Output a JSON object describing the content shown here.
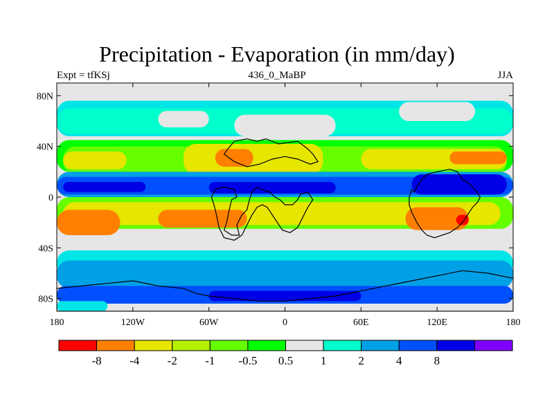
{
  "map": {
    "title": "Precipitation - Evaporation (in mm/day)",
    "left_label": "Expt = tfKSj",
    "center_label": "436_0_MaBP",
    "right_label": "JJA",
    "projection": "equirectangular",
    "lon_range": [
      -180,
      180
    ],
    "lat_range": [
      -90,
      90
    ],
    "lat_ticks": [
      {
        "value": 80,
        "label": "80N"
      },
      {
        "value": 40,
        "label": "40N"
      },
      {
        "value": 0,
        "label": "0"
      },
      {
        "value": -40,
        "label": "40S"
      },
      {
        "value": -80,
        "label": "80S"
      }
    ],
    "lon_ticks": [
      {
        "value": -180,
        "label": "180"
      },
      {
        "value": -120,
        "label": "120W"
      },
      {
        "value": -60,
        "label": "60W"
      },
      {
        "value": 0,
        "label": "0"
      },
      {
        "value": 60,
        "label": "60E"
      },
      {
        "value": 120,
        "label": "120E"
      },
      {
        "value": 180,
        "label": "180"
      }
    ],
    "background_color": "#e6e6e6",
    "regions": [
      {
        "category": "1 to 2",
        "color": "#00e6e6",
        "lon_range": [
          -180,
          180
        ],
        "lat_range": [
          48,
          76
        ]
      },
      {
        "category": "0.5 to 1",
        "color": "#00ffcc",
        "lon_range": [
          -180,
          180
        ],
        "lat_range": [
          50,
          70
        ]
      },
      {
        "category": "-0.5 to 0.5",
        "color": "#e6e6e6",
        "lon_range": [
          -100,
          -60
        ],
        "lat_range": [
          55,
          68
        ]
      },
      {
        "category": "-0.5 to 0.5",
        "color": "#e6e6e6",
        "lon_range": [
          -40,
          40
        ],
        "lat_range": [
          48,
          65
        ]
      },
      {
        "category": "-0.5 to 0.5",
        "color": "#e6e6e6",
        "lon_range": [
          90,
          150
        ],
        "lat_range": [
          60,
          75
        ]
      },
      {
        "category": "-1 to -0.5",
        "color": "#00ff00",
        "lon_range": [
          -180,
          180
        ],
        "lat_range": [
          20,
          45
        ]
      },
      {
        "category": "-2 to -1",
        "color": "#66ff00",
        "lon_range": [
          -175,
          175
        ],
        "lat_range": [
          18,
          40
        ]
      },
      {
        "category": "-4 to -2",
        "color": "#e6e600",
        "lon_range": [
          -175,
          -125
        ],
        "lat_range": [
          22,
          36
        ]
      },
      {
        "category": "-4 to -2",
        "color": "#e6e600",
        "lon_range": [
          -80,
          30
        ],
        "lat_range": [
          18,
          42
        ]
      },
      {
        "category": "-4 to -2",
        "color": "#e6e600",
        "lon_range": [
          60,
          175
        ],
        "lat_range": [
          22,
          38
        ]
      },
      {
        "category": "-8 to -4",
        "color": "#ff8000",
        "lon_range": [
          -55,
          -25
        ],
        "lat_range": [
          24,
          38
        ]
      },
      {
        "category": "-8 to -4",
        "color": "#ff8000",
        "lon_range": [
          130,
          175
        ],
        "lat_range": [
          26,
          36
        ]
      },
      {
        "category": "2 to 4",
        "color": "#00a0e6",
        "lon_range": [
          -180,
          180
        ],
        "lat_range": [
          0,
          20
        ]
      },
      {
        "category": "4 to 8",
        "color": "#0050ff",
        "lon_range": [
          -180,
          180
        ],
        "lat_range": [
          2,
          16
        ]
      },
      {
        "category": "> 8",
        "color": "#0000e6",
        "lon_range": [
          -175,
          -110
        ],
        "lat_range": [
          4,
          12
        ]
      },
      {
        "category": "> 8",
        "color": "#0000e6",
        "lon_range": [
          -60,
          40
        ],
        "lat_range": [
          3,
          12
        ]
      },
      {
        "category": "> 8",
        "color": "#0000e6",
        "lon_range": [
          100,
          175
        ],
        "lat_range": [
          2,
          18
        ]
      },
      {
        "category": "-2 to -1",
        "color": "#66ff00",
        "lon_range": [
          -180,
          180
        ],
        "lat_range": [
          -25,
          0
        ]
      },
      {
        "category": "-4 to -2",
        "color": "#e6e600",
        "lon_range": [
          -175,
          170
        ],
        "lat_range": [
          -22,
          -4
        ]
      },
      {
        "category": "-8 to -4",
        "color": "#ff8000",
        "lon_range": [
          -180,
          -130
        ],
        "lat_range": [
          -30,
          -10
        ]
      },
      {
        "category": "-8 to -4",
        "color": "#ff8000",
        "lon_range": [
          -100,
          -30
        ],
        "lat_range": [
          -24,
          -10
        ]
      },
      {
        "category": "-8 to -4",
        "color": "#ff8000",
        "lon_range": [
          95,
          145
        ],
        "lat_range": [
          -26,
          -8
        ]
      },
      {
        "category": "< -8",
        "color": "#ff0000",
        "lon_range": [
          135,
          145
        ],
        "lat_range": [
          -22,
          -14
        ]
      },
      {
        "category": "-0.5 to 0.5",
        "color": "#e6e6e6",
        "lon_range": [
          -160,
          -50
        ],
        "lat_range": [
          -40,
          -30
        ]
      },
      {
        "category": "-0.5 to 0.5",
        "color": "#e6e6e6",
        "lon_range": [
          0,
          110
        ],
        "lat_range": [
          -42,
          -30
        ]
      },
      {
        "category": "1 to 2",
        "color": "#00e6e6",
        "lon_range": [
          -180,
          180
        ],
        "lat_range": [
          -62,
          -42
        ]
      },
      {
        "category": "2 to 4",
        "color": "#00a0e6",
        "lon_range": [
          -180,
          180
        ],
        "lat_range": [
          -72,
          -50
        ]
      },
      {
        "category": "4 to 8",
        "color": "#0050ff",
        "lon_range": [
          -180,
          180
        ],
        "lat_range": [
          -84,
          -70
        ]
      },
      {
        "category": "> 8",
        "color": "#0000e6",
        "lon_range": [
          -60,
          60
        ],
        "lat_range": [
          -82,
          -74
        ]
      },
      {
        "category": "-0.5 to 0.5",
        "color": "#e6e6e6",
        "lon_range": [
          -140,
          180
        ],
        "lat_range": [
          -90,
          -84
        ]
      },
      {
        "category": "1 to 2",
        "color": "#00e6e6",
        "lon_range": [
          -180,
          -140
        ],
        "lat_range": [
          -90,
          -82
        ]
      }
    ],
    "land_outlines": [
      {
        "name": "north-landmass",
        "points": [
          [
            -48,
            34
          ],
          [
            -45,
            38
          ],
          [
            -40,
            44
          ],
          [
            -30,
            46
          ],
          [
            -22,
            44
          ],
          [
            -15,
            46
          ],
          [
            -5,
            42
          ],
          [
            10,
            44
          ],
          [
            18,
            38
          ],
          [
            22,
            34
          ],
          [
            26,
            28
          ],
          [
            20,
            26
          ],
          [
            10,
            30
          ],
          [
            0,
            32
          ],
          [
            -10,
            30
          ],
          [
            -20,
            26
          ],
          [
            -30,
            24
          ],
          [
            -40,
            28
          ],
          [
            -48,
            34
          ]
        ]
      },
      {
        "name": "equatorial-west",
        "points": [
          [
            -58,
            0
          ],
          [
            -55,
            6
          ],
          [
            -48,
            8
          ],
          [
            -40,
            6
          ],
          [
            -38,
            0
          ],
          [
            -42,
            -2
          ],
          [
            -44,
            -10
          ],
          [
            -46,
            -20
          ],
          [
            -48,
            -26
          ],
          [
            -42,
            -30
          ],
          [
            -36,
            -30
          ],
          [
            -38,
            -22
          ],
          [
            -34,
            -14
          ],
          [
            -30,
            -10
          ],
          [
            -28,
            -2
          ],
          [
            -26,
            4
          ],
          [
            -22,
            8
          ],
          [
            -18,
            6
          ],
          [
            -12,
            4
          ],
          [
            -8,
            0
          ],
          [
            -4,
            -2
          ],
          [
            0,
            -6
          ],
          [
            6,
            -6
          ],
          [
            10,
            -2
          ],
          [
            12,
            2
          ],
          [
            18,
            4
          ],
          [
            22,
            -2
          ],
          [
            18,
            -8
          ],
          [
            14,
            -16
          ],
          [
            10,
            -24
          ],
          [
            4,
            -28
          ],
          [
            -2,
            -26
          ],
          [
            -6,
            -20
          ],
          [
            -10,
            -14
          ],
          [
            -14,
            -8
          ],
          [
            -18,
            -6
          ],
          [
            -22,
            -8
          ],
          [
            -26,
            -14
          ],
          [
            -30,
            -22
          ],
          [
            -34,
            -30
          ],
          [
            -40,
            -34
          ],
          [
            -48,
            -32
          ],
          [
            -52,
            -24
          ],
          [
            -54,
            -14
          ],
          [
            -56,
            -6
          ],
          [
            -58,
            0
          ]
        ]
      },
      {
        "name": "eastern-continent",
        "points": [
          [
            98,
            0
          ],
          [
            100,
            6
          ],
          [
            102,
            4
          ],
          [
            104,
            8
          ],
          [
            108,
            14
          ],
          [
            112,
            18
          ],
          [
            120,
            20
          ],
          [
            130,
            22
          ],
          [
            136,
            20
          ],
          [
            140,
            14
          ],
          [
            146,
            10
          ],
          [
            150,
            6
          ],
          [
            154,
            0
          ],
          [
            152,
            -4
          ],
          [
            148,
            -8
          ],
          [
            144,
            -14
          ],
          [
            140,
            -20
          ],
          [
            136,
            -24
          ],
          [
            130,
            -28
          ],
          [
            124,
            -30
          ],
          [
            118,
            -32
          ],
          [
            112,
            -30
          ],
          [
            108,
            -26
          ],
          [
            104,
            -20
          ],
          [
            100,
            -12
          ],
          [
            98,
            -6
          ],
          [
            98,
            0
          ]
        ]
      },
      {
        "name": "southern-continent",
        "points": [
          [
            -180,
            -72
          ],
          [
            -160,
            -70
          ],
          [
            -140,
            -68
          ],
          [
            -120,
            -66
          ],
          [
            -100,
            -70
          ],
          [
            -80,
            -72
          ],
          [
            -70,
            -76
          ],
          [
            -60,
            -78
          ],
          [
            -40,
            -80
          ],
          [
            -20,
            -82
          ],
          [
            0,
            -82
          ],
          [
            20,
            -80
          ],
          [
            40,
            -78
          ],
          [
            60,
            -74
          ],
          [
            80,
            -70
          ],
          [
            100,
            -66
          ],
          [
            120,
            -62
          ],
          [
            140,
            -58
          ],
          [
            160,
            -60
          ],
          [
            180,
            -64
          ],
          [
            180,
            -90
          ],
          [
            -180,
            -90
          ],
          [
            -180,
            -72
          ]
        ]
      }
    ]
  },
  "colorbar": {
    "colors": [
      "#ff0000",
      "#ff8000",
      "#e6e600",
      "#b4f000",
      "#66ff00",
      "#00ff00",
      "#e6e6e6",
      "#00ffcc",
      "#00a0e6",
      "#0050ff",
      "#0000e6",
      "#7f00ff"
    ],
    "labels": [
      "-8",
      "-4",
      "-2",
      "-1",
      "-0.5",
      "0.5",
      "1",
      "2",
      "4",
      "8"
    ]
  }
}
